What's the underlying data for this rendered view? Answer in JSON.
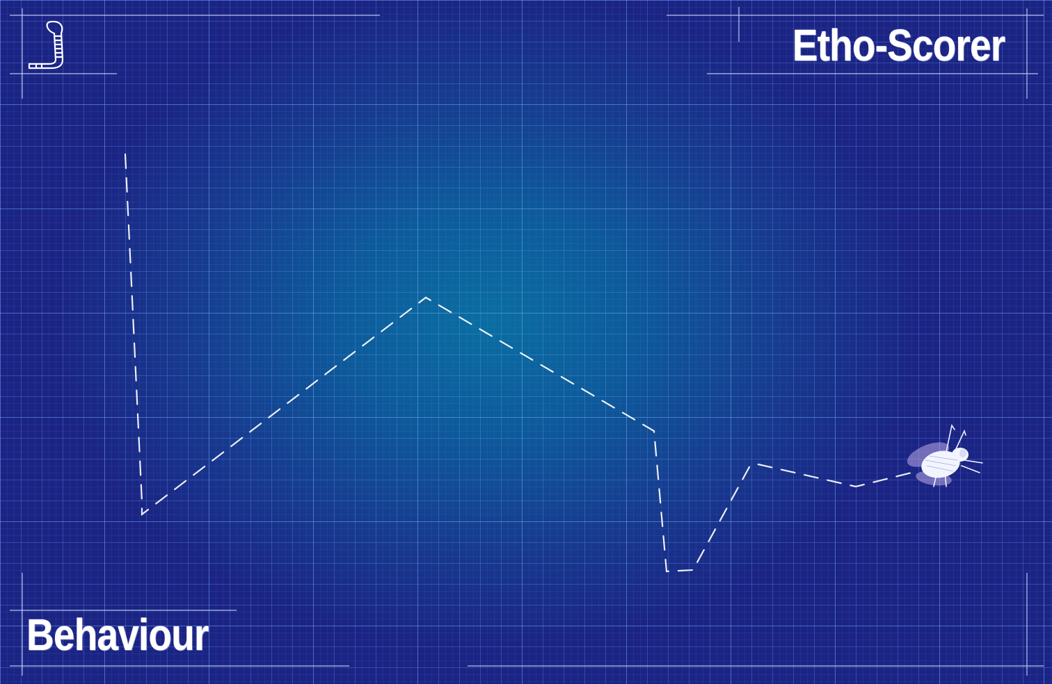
{
  "header": {
    "app_title": "Etho-Scorer"
  },
  "footer": {
    "section_label": "Behaviour"
  },
  "icons": {
    "logo": "larva-logo-icon",
    "fly": "fruit-fly-icon"
  },
  "colors": {
    "background": "#1b2483",
    "glow": "#0a6ea0",
    "grid": "#78aaff",
    "ink": "#ffffff"
  }
}
